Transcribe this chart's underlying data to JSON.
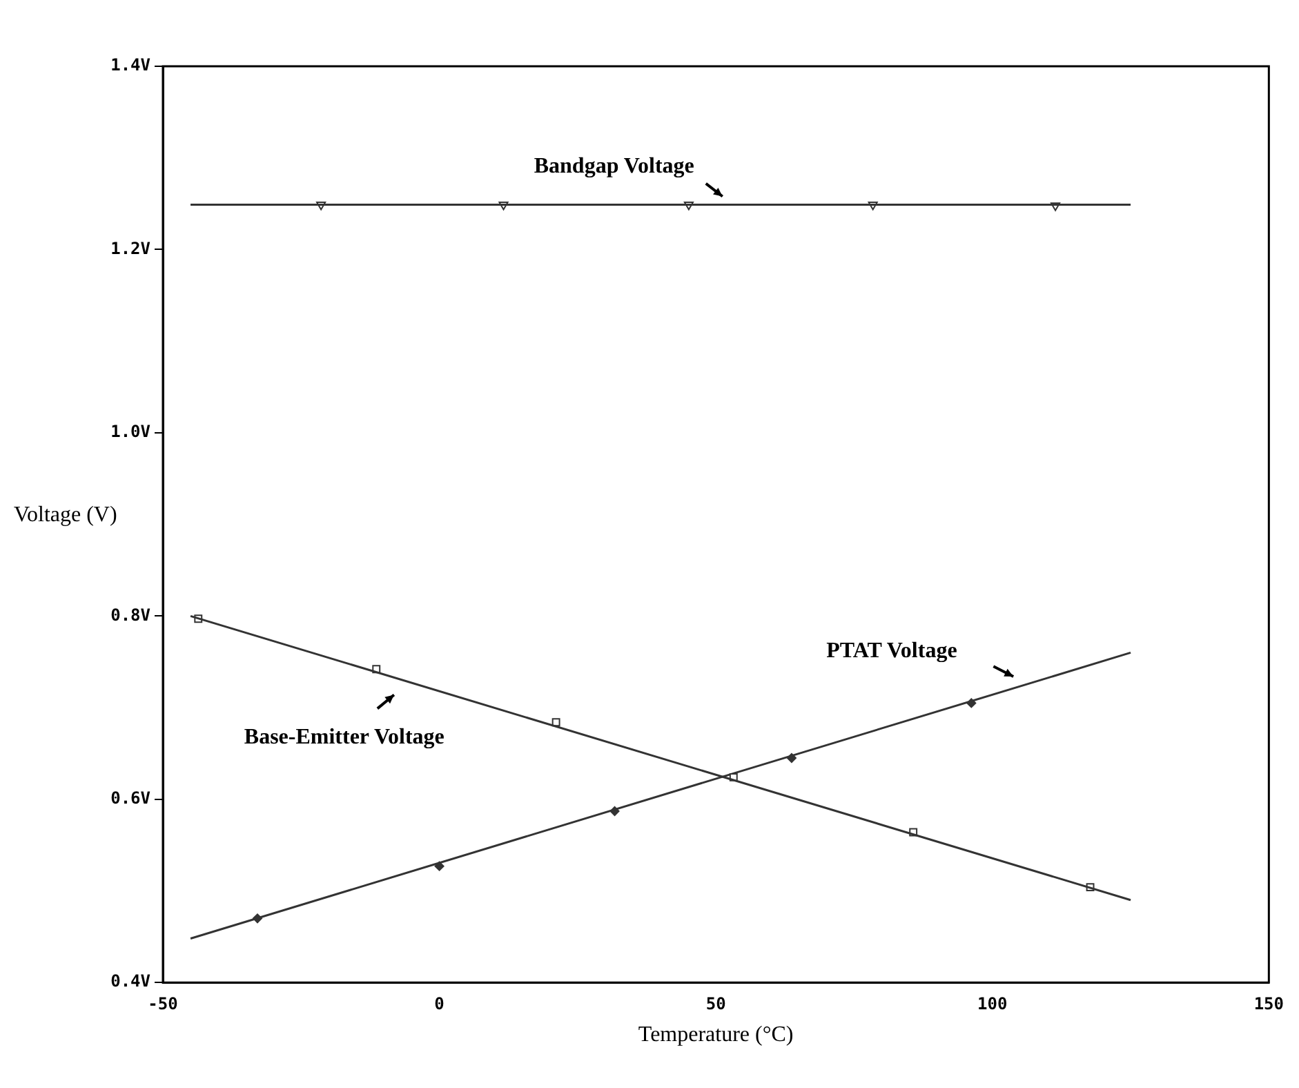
{
  "chart_data": {
    "type": "line",
    "xlabel": "Temperature (°C)",
    "ylabel": "Voltage (V)",
    "xlim": [
      -50,
      150
    ],
    "xticks": [
      -50,
      0,
      50,
      100,
      150
    ],
    "ylim": [
      0.4,
      1.4
    ],
    "yticks": [
      {
        "value": 0.4,
        "label": "0.4V"
      },
      {
        "value": 0.6,
        "label": "0.6V"
      },
      {
        "value": 0.8,
        "label": "0.8V"
      },
      {
        "value": 1.0,
        "label": "1.0V"
      },
      {
        "value": 1.2,
        "label": "1.2V"
      },
      {
        "value": 1.4,
        "label": "1.4V"
      }
    ],
    "grid": false,
    "legend": false,
    "line_style": "solid",
    "series": [
      {
        "marker": "none",
        "color": "#333333",
        "x": [
          -45,
          125
        ],
        "values": [
          1.249,
          1.249
        ]
      },
      {
        "type": "scatter",
        "marker": "triangle",
        "color": "#333333",
        "x": [
          -21.4,
          11.6,
          45.1,
          78.4,
          111.4
        ],
        "values": [
          1.249,
          1.249,
          1.249,
          1.249,
          1.248
        ]
      },
      {
        "marker": "none",
        "color": "#333333",
        "x": [
          -45,
          125
        ],
        "values": [
          0.8,
          0.49
        ]
      },
      {
        "type": "scatter",
        "marker": "square",
        "color": "#333333",
        "x": [
          -43.6,
          -11.4,
          21.1,
          53.2,
          85.7,
          117.7
        ],
        "values": [
          0.797,
          0.742,
          0.684,
          0.624,
          0.564,
          0.504
        ]
      },
      {
        "marker": "none",
        "color": "#333333",
        "x": [
          -45,
          125
        ],
        "values": [
          0.448,
          0.76
        ]
      },
      {
        "type": "scatter",
        "marker": "diamond",
        "color": "#333333",
        "x": [
          -32.9,
          0,
          31.7,
          63.7,
          96.2
        ],
        "values": [
          0.47,
          0.527,
          0.587,
          0.645,
          0.705
        ]
      }
    ],
    "annotations": [
      "Bandgap Voltage",
      "Base-Emitter Voltage",
      "PTAT Voltage"
    ]
  }
}
